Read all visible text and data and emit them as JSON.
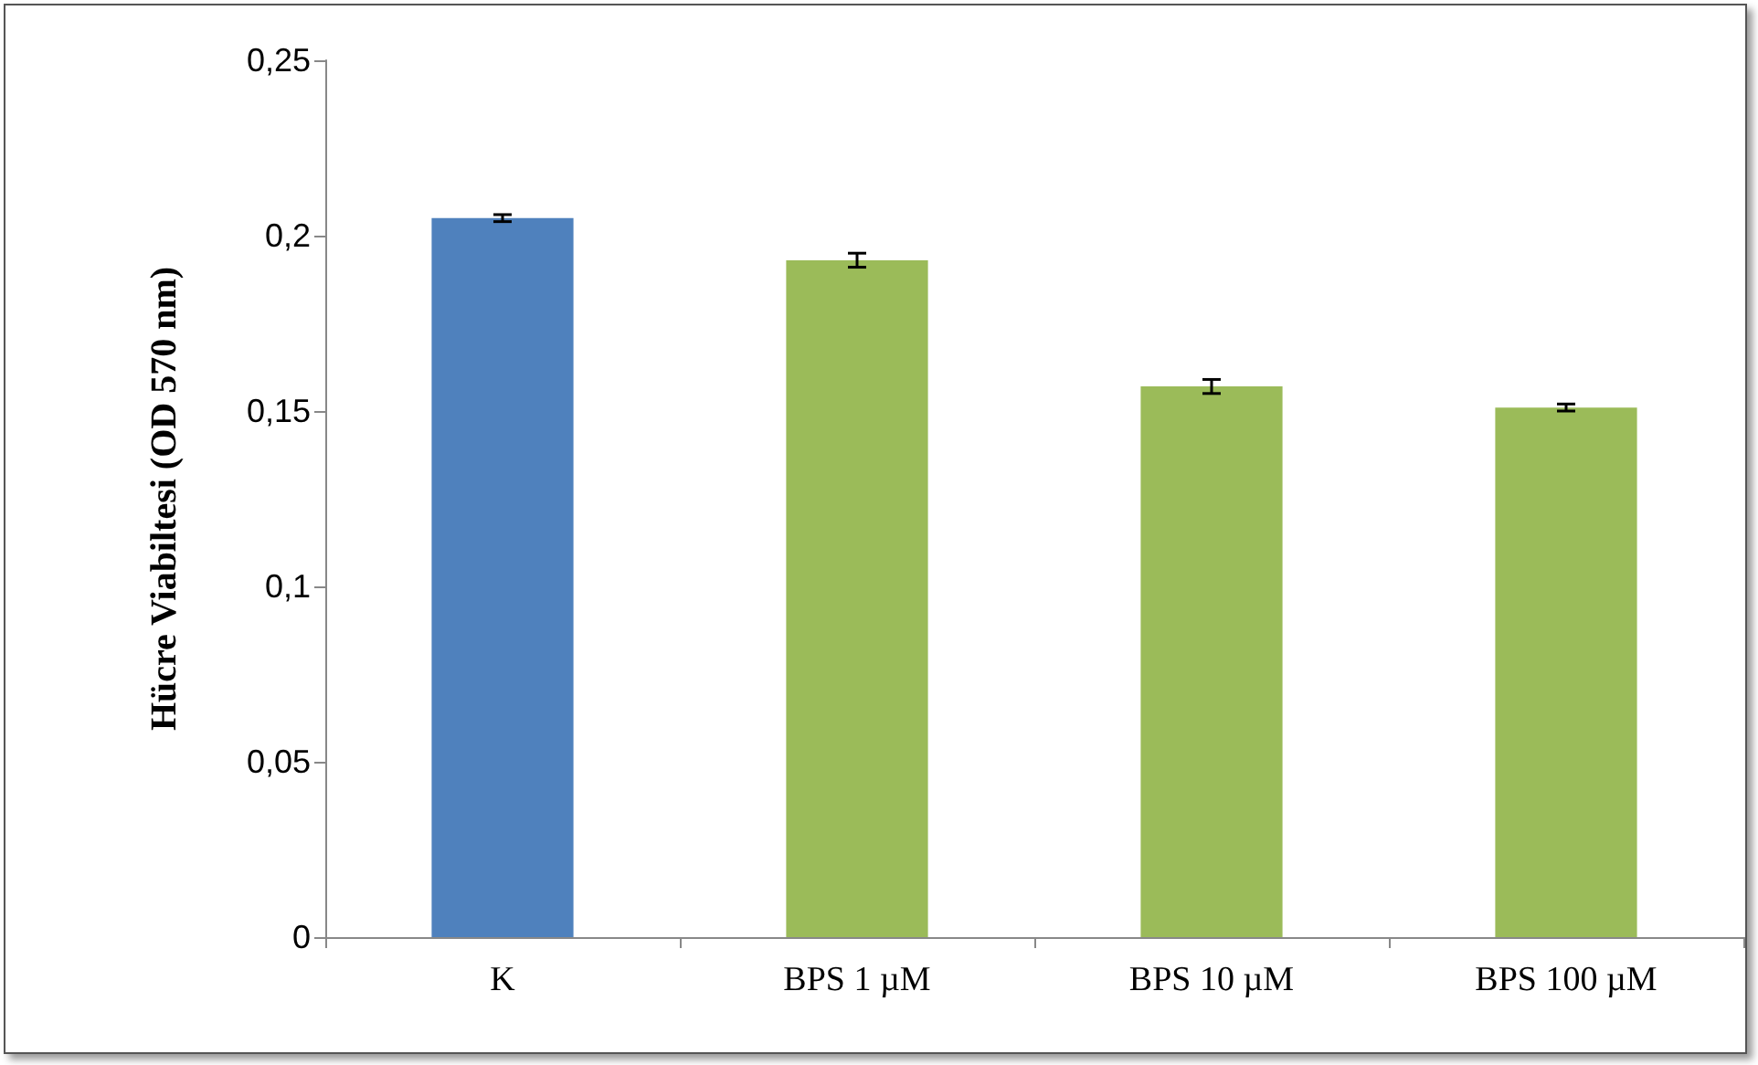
{
  "chart_data": {
    "type": "bar",
    "ylabel": "Hücre Viabiltesi (OD 570 nm)",
    "categories": [
      "K",
      "BPS 1 µM",
      "BPS 10 µM",
      "BPS 100 µM"
    ],
    "values": [
      0.205,
      0.193,
      0.157,
      0.151
    ],
    "colors": [
      "#4f81bd",
      "#9bbb59",
      "#9bbb59",
      "#9bbb59"
    ],
    "errors": [
      0.001,
      0.002,
      0.002,
      0.001
    ],
    "ylim": [
      0,
      0.25
    ],
    "yticks": [
      0,
      {
        "value": 0.05,
        "label": "0,05"
      },
      {
        "value": 0.1,
        "label": "0,1"
      },
      {
        "value": 0.15,
        "label": "0,15"
      },
      {
        "value": 0.2,
        "label": "0,2"
      },
      {
        "value": 0.25,
        "label": "0,25"
      }
    ],
    "grid": false
  }
}
